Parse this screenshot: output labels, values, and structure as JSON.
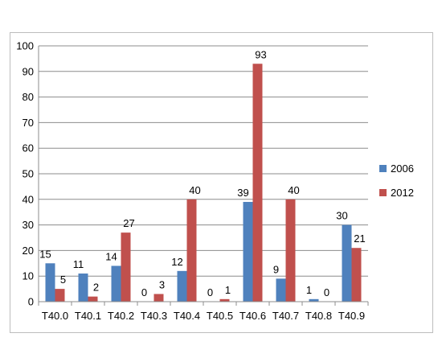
{
  "chart_data": {
    "type": "bar",
    "title": "",
    "xlabel": "",
    "ylabel": "",
    "categories": [
      "T40.0",
      "T40.1",
      "T40.2",
      "T40.3",
      "T40.4",
      "T40.5",
      "T40.6",
      "T40.7",
      "T40.8",
      "T40.9"
    ],
    "series": [
      {
        "name": "2006",
        "color": "#4f81bd",
        "values": [
          15,
          11,
          14,
          0,
          12,
          0,
          39,
          9,
          1,
          30
        ]
      },
      {
        "name": "2012",
        "color": "#c0504d",
        "values": [
          5,
          2,
          27,
          3,
          40,
          1,
          93,
          40,
          0,
          21
        ]
      }
    ],
    "ylim": [
      0,
      100
    ],
    "yticks": [
      0,
      10,
      20,
      30,
      40,
      50,
      60,
      70,
      80,
      90,
      100
    ],
    "grid": true,
    "legend_position": "right"
  }
}
